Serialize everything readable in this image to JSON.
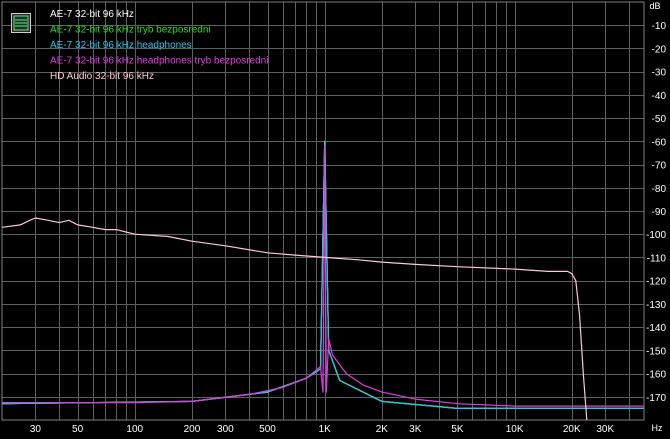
{
  "chart_data": {
    "type": "line",
    "xscale": "log",
    "xlim": [
      20,
      48000
    ],
    "ylim": [
      -180,
      0
    ],
    "xunit": "Hz",
    "yunit": "dB",
    "grid": true,
    "legend_position": "top-left",
    "xticks": [
      {
        "v": 30,
        "label": "30"
      },
      {
        "v": 50,
        "label": "50"
      },
      {
        "v": 100,
        "label": "100"
      },
      {
        "v": 200,
        "label": "200"
      },
      {
        "v": 300,
        "label": "300"
      },
      {
        "v": 500,
        "label": "500"
      },
      {
        "v": 1000,
        "label": "1K"
      },
      {
        "v": 2000,
        "label": "2K"
      },
      {
        "v": 3000,
        "label": "3K"
      },
      {
        "v": 5000,
        "label": "5K"
      },
      {
        "v": 10000,
        "label": "10K"
      },
      {
        "v": 20000,
        "label": "20K"
      },
      {
        "v": 30000,
        "label": "30K"
      }
    ],
    "yticks": [
      {
        "v": -10,
        "label": "-10"
      },
      {
        "v": -20,
        "label": "-20"
      },
      {
        "v": -30,
        "label": "-30"
      },
      {
        "v": -40,
        "label": "-40"
      },
      {
        "v": -50,
        "label": "-50"
      },
      {
        "v": -60,
        "label": "-60"
      },
      {
        "v": -70,
        "label": "-70"
      },
      {
        "v": -80,
        "label": "-80"
      },
      {
        "v": -90,
        "label": "-90"
      },
      {
        "v": -100,
        "label": "-100"
      },
      {
        "v": -110,
        "label": "-110"
      },
      {
        "v": -120,
        "label": "-120"
      },
      {
        "v": -130,
        "label": "-130"
      },
      {
        "v": -140,
        "label": "-140"
      },
      {
        "v": -150,
        "label": "-150"
      },
      {
        "v": -160,
        "label": "-160"
      },
      {
        "v": -170,
        "label": "-170"
      }
    ],
    "series": [
      {
        "name": "AE-7 32-bit 96 kHz",
        "color": "#ffffff",
        "points": [
          [
            20,
            -173
          ],
          [
            200,
            -172
          ],
          [
            500,
            -168
          ],
          [
            800,
            -162
          ],
          [
            950,
            -158
          ],
          [
            1000,
            -60
          ],
          [
            1050,
            -150
          ],
          [
            1200,
            -163
          ],
          [
            2000,
            -172
          ],
          [
            5000,
            -175
          ],
          [
            48000,
            -175
          ]
        ]
      },
      {
        "name": "AE-7 32-bit 96 kHz tryb bezposredni",
        "color": "#22dd22",
        "points": [
          [
            20,
            -173
          ],
          [
            200,
            -172
          ],
          [
            500,
            -168
          ],
          [
            800,
            -162
          ],
          [
            950,
            -158
          ],
          [
            1000,
            -60
          ],
          [
            1050,
            -150
          ],
          [
            1200,
            -163
          ],
          [
            2000,
            -172
          ],
          [
            5000,
            -175
          ],
          [
            48000,
            -175
          ]
        ]
      },
      {
        "name": "AE-7 32-bit 96 kHz headphones",
        "color": "#22c8e8",
        "points": [
          [
            20,
            -173
          ],
          [
            200,
            -172
          ],
          [
            500,
            -168
          ],
          [
            800,
            -162
          ],
          [
            950,
            -158
          ],
          [
            1000,
            -60
          ],
          [
            1050,
            -150
          ],
          [
            1200,
            -163
          ],
          [
            2000,
            -172
          ],
          [
            5000,
            -175
          ],
          [
            48000,
            -175
          ]
        ]
      },
      {
        "name": "AE-7 32-bit 96 kHz headphones tryb bezposredni",
        "color": "#e23ce2",
        "points": [
          [
            20,
            -172.5
          ],
          [
            100,
            -172.5
          ],
          [
            200,
            -172
          ],
          [
            400,
            -169
          ],
          [
            600,
            -166
          ],
          [
            800,
            -162
          ],
          [
            950,
            -157
          ],
          [
            980,
            -168
          ],
          [
            1000,
            -62
          ],
          [
            1020,
            -168
          ],
          [
            1050,
            -145
          ],
          [
            1100,
            -152
          ],
          [
            1300,
            -160
          ],
          [
            1600,
            -165
          ],
          [
            2000,
            -168
          ],
          [
            3000,
            -171
          ],
          [
            5000,
            -173
          ],
          [
            10000,
            -174
          ],
          [
            48000,
            -174
          ]
        ]
      },
      {
        "name": "HD Audio 32-bit 96 kHz",
        "color": "#ffc8d2",
        "points": [
          [
            20,
            -97
          ],
          [
            25,
            -96
          ],
          [
            28,
            -94
          ],
          [
            30,
            -93
          ],
          [
            35,
            -94
          ],
          [
            40,
            -95
          ],
          [
            45,
            -94
          ],
          [
            50,
            -96
          ],
          [
            60,
            -97
          ],
          [
            70,
            -98
          ],
          [
            80,
            -98
          ],
          [
            100,
            -100
          ],
          [
            150,
            -101
          ],
          [
            200,
            -103
          ],
          [
            300,
            -105
          ],
          [
            500,
            -108
          ],
          [
            700,
            -109
          ],
          [
            1000,
            -110
          ],
          [
            1500,
            -111
          ],
          [
            2000,
            -112
          ],
          [
            3000,
            -113
          ],
          [
            5000,
            -114
          ],
          [
            10000,
            -115
          ],
          [
            15000,
            -116
          ],
          [
            19000,
            -116
          ],
          [
            20000,
            -117
          ],
          [
            21000,
            -120
          ],
          [
            22000,
            -135
          ],
          [
            23000,
            -160
          ],
          [
            24000,
            -180
          ]
        ]
      }
    ]
  }
}
